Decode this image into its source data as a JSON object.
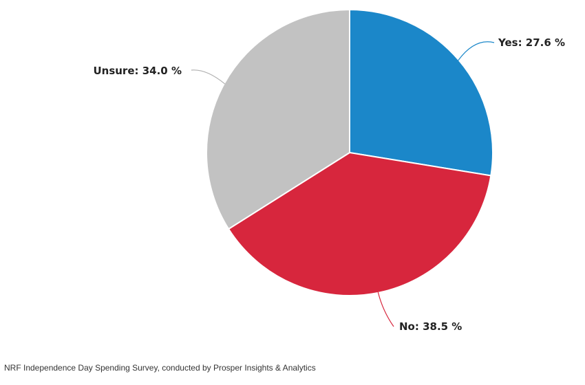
{
  "chart_data": {
    "type": "pie",
    "slices": [
      {
        "label": "Yes",
        "value": 27.6,
        "display": "Yes: 27.6 %",
        "color": "#1b87c9"
      },
      {
        "label": "No",
        "value": 38.5,
        "display": "No: 38.5 %",
        "color": "#d7263d"
      },
      {
        "label": "Unsure",
        "value": 34.0,
        "display": "Unsure: 34.0 %",
        "color": "#c2c2c2"
      }
    ],
    "start_angle_deg": 0,
    "direction": "clockwise"
  },
  "source": "NRF Independence Day Spending Survey, conducted by Prosper Insights & Analytics"
}
